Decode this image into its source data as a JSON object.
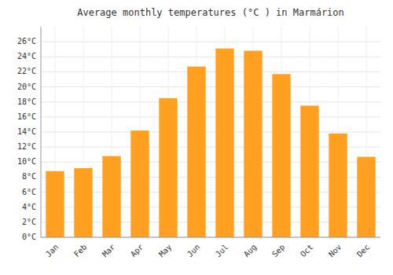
{
  "chart_data": {
    "type": "bar",
    "title": "Average monthly temperatures (°C ) in Marmárion",
    "categories": [
      "Jan",
      "Feb",
      "Mar",
      "Apr",
      "May",
      "Jun",
      "Jul",
      "Aug",
      "Sep",
      "Oct",
      "Nov",
      "Dec"
    ],
    "values": [
      8.8,
      9.2,
      10.8,
      14.2,
      18.5,
      22.7,
      25.1,
      24.8,
      21.7,
      17.5,
      13.8,
      10.7
    ],
    "color": "#FFA020",
    "ylim": [
      0,
      28
    ],
    "yticks": [
      {
        "value": 0,
        "label": "0°C"
      },
      {
        "value": 2,
        "label": "2°C"
      },
      {
        "value": 4,
        "label": "4°C"
      },
      {
        "value": 6,
        "label": "6°C"
      },
      {
        "value": 8,
        "label": "8°C"
      },
      {
        "value": 10,
        "label": "10°C"
      },
      {
        "value": 12,
        "label": "12°C"
      },
      {
        "value": 14,
        "label": "14°C"
      },
      {
        "value": 16,
        "label": "16°C"
      },
      {
        "value": 18,
        "label": "18°C"
      },
      {
        "value": 20,
        "label": "20°C"
      },
      {
        "value": 22,
        "label": "22°C"
      },
      {
        "value": 24,
        "label": "24°C"
      },
      {
        "value": 26,
        "label": "26°C"
      }
    ],
    "grid": true
  }
}
